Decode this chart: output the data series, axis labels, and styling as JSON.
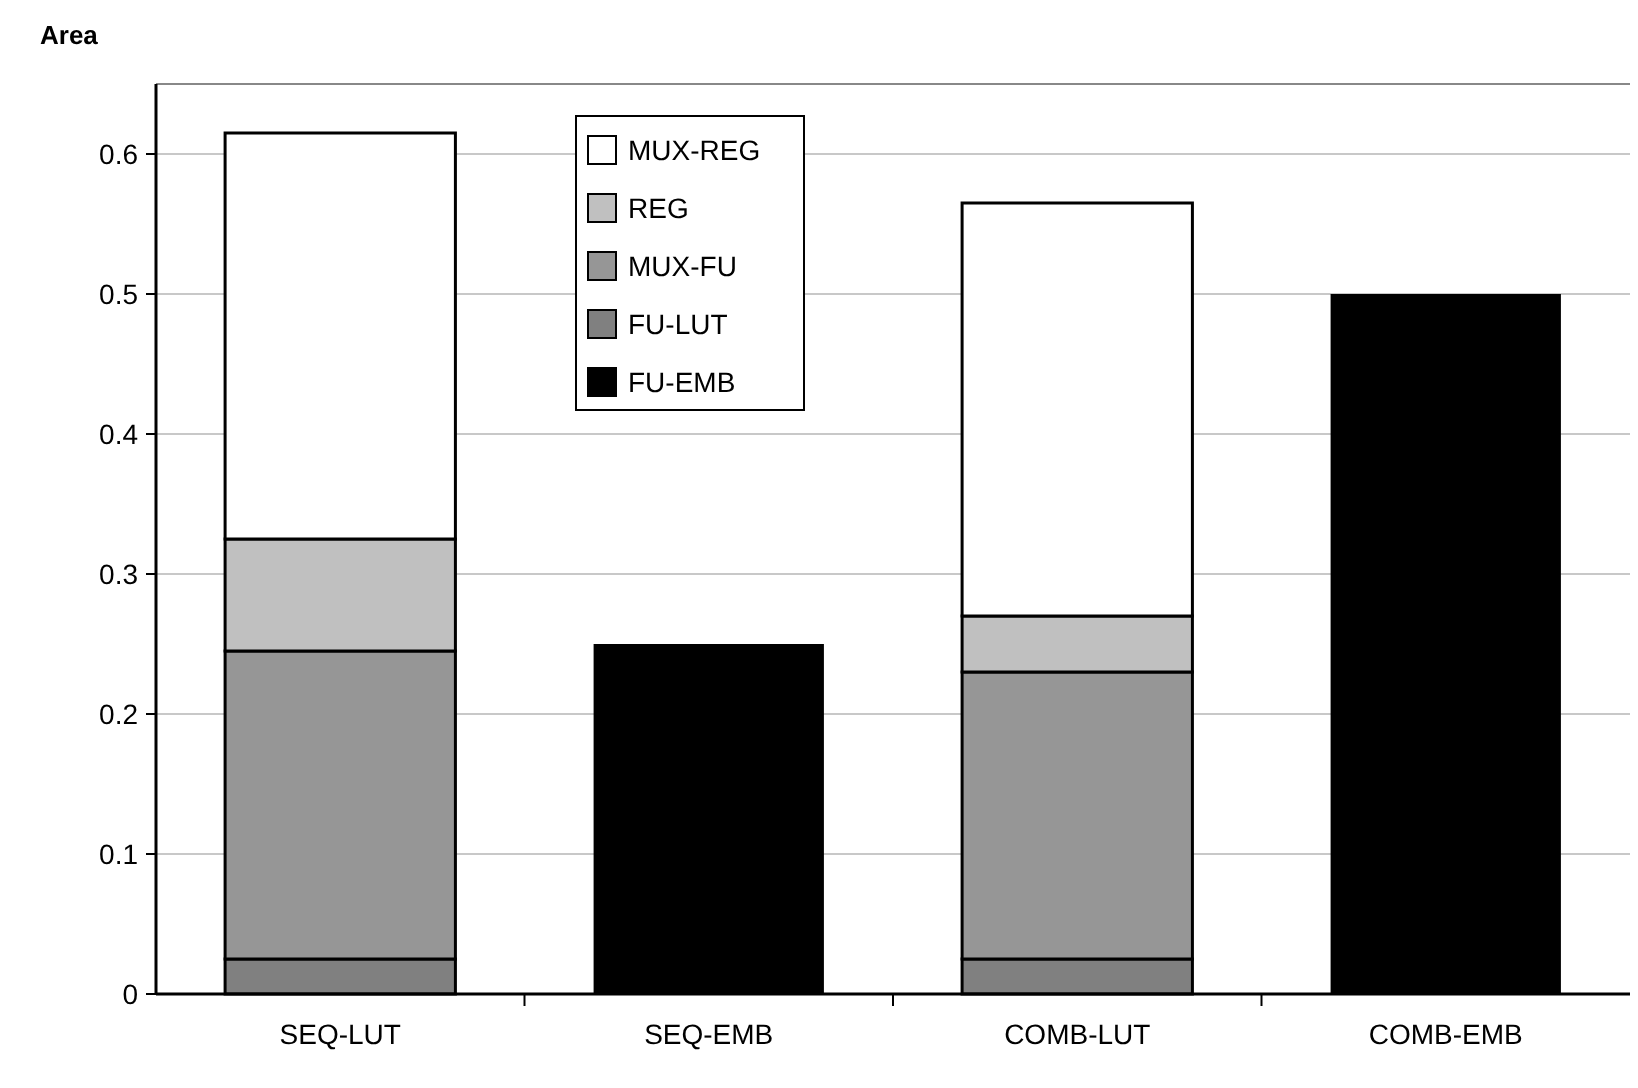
{
  "chart_data": {
    "type": "bar",
    "ylabel": "Area",
    "categories": [
      "SEQ-LUT",
      "SEQ-EMB",
      "COMB-LUT",
      "COMB-EMB"
    ],
    "stacked": true,
    "series": [
      {
        "name": "FU-EMB",
        "color": "#000000",
        "values": [
          null,
          0.25,
          null,
          0.5
        ]
      },
      {
        "name": "FU-LUT",
        "color": "#808080",
        "values": [
          0.025,
          null,
          0.025,
          null
        ]
      },
      {
        "name": "MUX-FU",
        "color": "#969696",
        "values": [
          0.22,
          null,
          0.205,
          null
        ]
      },
      {
        "name": "REG",
        "color": "#c0c0c0",
        "values": [
          0.08,
          null,
          0.04,
          null
        ]
      },
      {
        "name": "MUX-REG",
        "color": "#ffffff",
        "values": [
          0.29,
          null,
          0.295,
          null
        ]
      }
    ],
    "ylim": [
      0,
      0.65
    ],
    "yticks": [
      {
        "value": 0,
        "label": "0"
      },
      0.1,
      0.2,
      0.3,
      0.4,
      0.5,
      0.6
    ],
    "grid": "y",
    "legend": "top"
  }
}
